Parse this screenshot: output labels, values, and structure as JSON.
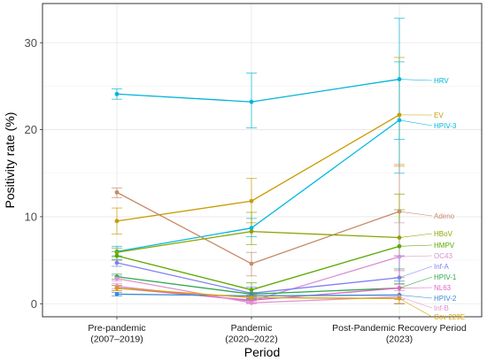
{
  "chart_data": {
    "type": "line",
    "title": "",
    "xlabel": "Period",
    "ylabel": "Positivity rate (%)",
    "categories": [
      [
        "Pre-pandemic",
        "(2007–2019)"
      ],
      [
        "Pandemic",
        "(2020–2022)"
      ],
      [
        "Post-Pandemic Recovery Period",
        "(2023)"
      ]
    ],
    "ylim": [
      -1.5,
      34.5
    ],
    "yticks": [
      0,
      10,
      20,
      30
    ],
    "grid": true,
    "legend": "none (direct labels at right end of each line)",
    "series": [
      {
        "name": "HRV",
        "color": "#00b4d8",
        "values": [
          24.1,
          23.2,
          25.8
        ],
        "err": [
          [
            23.5,
            24.7
          ],
          [
            20.2,
            26.5
          ],
          [
            18.9,
            32.8
          ]
        ]
      },
      {
        "name": "EV",
        "color": "#c99b00",
        "values": [
          9.5,
          11.8,
          21.7
        ],
        "err": [
          [
            8.0,
            11.0
          ],
          [
            9.3,
            14.4
          ],
          [
            15.8,
            28.3
          ]
        ]
      },
      {
        "name": "HPIV-3",
        "color": "#00b8e0",
        "values": [
          6.0,
          8.7,
          21.1
        ],
        "err": [
          [
            5.5,
            6.6
          ],
          [
            7.7,
            9.8
          ],
          [
            15.0,
            27.8
          ]
        ]
      },
      {
        "name": "Adeno",
        "color": "#c88a6a",
        "values": [
          12.8,
          4.6,
          10.6
        ],
        "err": [
          [
            12.2,
            13.3
          ],
          [
            3.2,
            5.9
          ],
          [
            5.5,
            16.0
          ]
        ]
      },
      {
        "name": "HBoV",
        "color": "#8aa400",
        "values": [
          5.9,
          8.3,
          7.6
        ],
        "err": [
          [
            5.4,
            6.4
          ],
          [
            6.8,
            10.5
          ],
          [
            3.0,
            12.6
          ]
        ]
      },
      {
        "name": "HMPV",
        "color": "#5aa800",
        "values": [
          5.5,
          1.6,
          6.6
        ],
        "err": [
          [
            5.0,
            6.0
          ],
          [
            0.9,
            2.4
          ],
          [
            2.3,
            10.8
          ]
        ]
      },
      {
        "name": "OC43",
        "color": "#d68fd6",
        "values": [
          2.0,
          0.3,
          5.4
        ],
        "err": [
          [
            1.7,
            2.3
          ],
          [
            0.0,
            0.7
          ],
          [
            1.5,
            9.3
          ]
        ]
      },
      {
        "name": "Inf-A",
        "color": "#8080f0",
        "values": [
          4.7,
          1.2,
          3.0
        ],
        "err": [
          [
            4.3,
            5.1
          ],
          [
            0.6,
            1.9
          ],
          [
            0.5,
            5.5
          ]
        ]
      },
      {
        "name": "HPIV-1",
        "color": "#2ea84a",
        "values": [
          3.1,
          1.1,
          1.8
        ],
        "err": [
          [
            2.8,
            3.4
          ],
          [
            0.6,
            1.7
          ],
          [
            0.0,
            4.0
          ]
        ]
      },
      {
        "name": "NL63",
        "color": "#e066c8",
        "values": [
          1.8,
          0.4,
          1.8
        ],
        "err": [
          [
            1.5,
            2.1
          ],
          [
            0.1,
            0.8
          ],
          [
            0.0,
            3.8
          ]
        ]
      },
      {
        "name": "HPIV-2",
        "color": "#3a8ad8",
        "values": [
          1.1,
          0.9,
          1.0
        ],
        "err": [
          [
            0.9,
            1.3
          ],
          [
            0.5,
            1.3
          ],
          [
            0.0,
            2.6
          ]
        ]
      },
      {
        "name": "Inf-B",
        "color": "#e090d0",
        "values": [
          2.9,
          0.1,
          0.8
        ],
        "err": [
          [
            2.6,
            3.2
          ],
          [
            0.0,
            0.3
          ],
          [
            0.0,
            2.2
          ]
        ]
      },
      {
        "name": "Cov 229E",
        "color": "#d7a100",
        "values": [
          1.8,
          0.7,
          0.6
        ],
        "err": [
          [
            1.5,
            2.1
          ],
          [
            0.4,
            1.0
          ],
          [
            0.0,
            1.8
          ]
        ]
      }
    ]
  }
}
